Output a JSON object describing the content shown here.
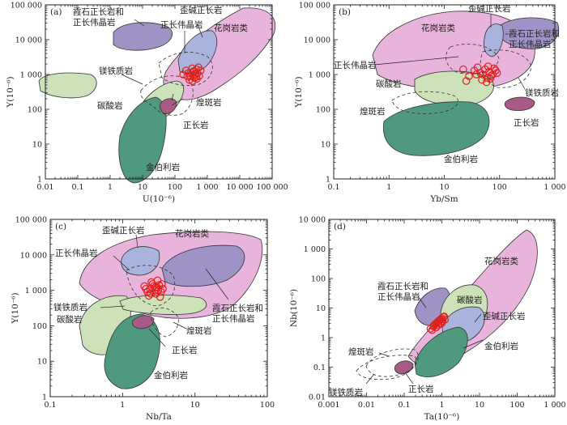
{
  "colors": {
    "granite": "#e8b4dc",
    "nepheline": "#9e93c4",
    "peralkaline": "#a9b3dc",
    "pegmatite": "#c9a6c8",
    "kimberlite": "#4f9a7f",
    "carbonatite": "#cde2b8",
    "orthoclasite": "#a85a87",
    "points": "#e0201b"
  },
  "chart_data": [
    {
      "type": "scatter",
      "panel": "(a)",
      "xlabel": "U(10⁻⁶)",
      "ylabel": "Y(10⁻⁶)",
      "xscale": "log",
      "yscale": "log",
      "xlim": [
        0.01,
        100000
      ],
      "ylim": [
        1,
        100000
      ],
      "xticks": [
        "0.01",
        "0.1",
        "1",
        "10",
        "100",
        "1 000",
        "10 000",
        "100 000"
      ],
      "yticks": [
        "1",
        "10",
        "100",
        "1 000",
        "10 000",
        "100 000"
      ],
      "region_labels": [
        "霞石正长岩和正长伟晶岩",
        "歪碱正长岩",
        "正长伟晶岩",
        "花岗岩类",
        "镁铁质岩",
        "碳酸岩",
        "煌斑岩",
        "正长岩",
        "金伯利岩"
      ],
      "samples": {
        "x": [
          180,
          220,
          260,
          300,
          340,
          380,
          420,
          460,
          500,
          560,
          620,
          280,
          350,
          400,
          470,
          530,
          240,
          310,
          390,
          450
        ],
        "y": [
          1000,
          1300,
          1100,
          900,
          1500,
          1200,
          1000,
          1400,
          1100,
          900,
          1300,
          700,
          650,
          800,
          750,
          1600,
          900,
          1150,
          1250,
          850
        ]
      }
    },
    {
      "type": "scatter",
      "panel": "(b)",
      "xlabel": "Yb/Sm",
      "ylabel": "Y(10⁻⁶)",
      "xscale": "log",
      "yscale": "log",
      "xlim": [
        0.1,
        1000
      ],
      "ylim": [
        1,
        100000
      ],
      "xticks": [
        "0.1",
        "1",
        "10",
        "100",
        "1 000"
      ],
      "yticks": [
        "1",
        "10",
        "100",
        "1 000",
        "10 000",
        "100 000"
      ],
      "region_labels": [
        "花岗岩类",
        "歪碱正长岩",
        "霞石正长岩和正长伟晶岩",
        "正长伟晶岩",
        "碳酸岩",
        "煌斑岩",
        "镁铁质岩",
        "正长岩",
        "金伯利岩"
      ],
      "samples": {
        "x": [
          22,
          28,
          35,
          40,
          45,
          50,
          55,
          60,
          65,
          70,
          75,
          80,
          90,
          48,
          58,
          68,
          38,
          85,
          25,
          62
        ],
        "y": [
          1400,
          900,
          1300,
          1600,
          1100,
          1000,
          1400,
          800,
          1200,
          900,
          1000,
          1500,
          1100,
          700,
          600,
          750,
          1000,
          1300,
          650,
          1700
        ]
      }
    },
    {
      "type": "scatter",
      "panel": "(c)",
      "xlabel": "Nb/Ta",
      "ylabel": "Y(10⁻⁶)",
      "xscale": "log",
      "yscale": "log",
      "xlim": [
        0.1,
        100
      ],
      "ylim": [
        1,
        100000
      ],
      "xticks": [
        "0.1",
        "1",
        "10",
        "100"
      ],
      "yticks": [
        "1",
        "10",
        "100",
        "1 000",
        "10 000",
        "100 000"
      ],
      "region_labels": [
        "歪碱正长岩",
        "花岗岩类",
        "正长伟晶岩",
        "镁铁质岩",
        "碳酸岩",
        "霞石正长岩和正长伟晶岩",
        "煌斑岩",
        "正长岩",
        "金伯利岩"
      ],
      "samples": {
        "x": [
          2.0,
          2.2,
          2.4,
          2.6,
          2.8,
          3.0,
          3.2,
          3.4,
          3.6,
          2.3,
          2.5,
          2.9,
          3.3,
          2.1,
          2.7,
          3.1,
          3.5,
          2.45,
          2.85,
          3.05
        ],
        "y": [
          1300,
          900,
          1100,
          1500,
          1000,
          1200,
          1400,
          900,
          1100,
          700,
          1700,
          800,
          650,
          1100,
          1300,
          1000,
          1500,
          800,
          1200,
          1900
        ]
      }
    },
    {
      "type": "scatter",
      "panel": "(d)",
      "xlabel": "Ta(10⁻⁶)",
      "ylabel": "Nb(10⁻⁶)",
      "xscale": "log",
      "yscale": "log",
      "xlim": [
        0.001,
        1000
      ],
      "ylim": [
        0.01,
        10000
      ],
      "xticks": [
        "0.001",
        "0.01",
        "0.1",
        "1",
        "10",
        "100",
        "1 000"
      ],
      "yticks": [
        "0.01",
        "0.1",
        "1",
        "10",
        "100",
        "1 000",
        "10 000"
      ],
      "region_labels": [
        "花岗岩类",
        "霞石正长岩和正长伟晶岩",
        "碳酸岩",
        "歪碱正长岩",
        "金伯利岩",
        "煌斑岩",
        "镁铁质岩",
        "正长岩"
      ],
      "samples": {
        "x": [
          0.5,
          0.6,
          0.7,
          0.8,
          0.9,
          1.0,
          1.1,
          1.2,
          0.65,
          0.75,
          0.85,
          0.95,
          1.05,
          0.55,
          0.7,
          0.9,
          1.15,
          0.8,
          1.0,
          0.6
        ],
        "y": [
          2.0,
          2.5,
          3.0,
          3.5,
          4.0,
          4.5,
          5.0,
          4.0,
          2.8,
          3.2,
          3.8,
          4.2,
          3.6,
          1.8,
          2.2,
          2.9,
          5.2,
          2.6,
          3.1,
          2.4
        ]
      }
    }
  ]
}
